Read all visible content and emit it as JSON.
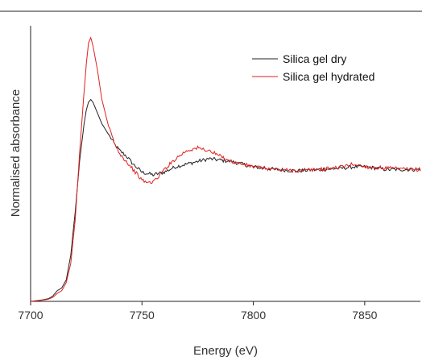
{
  "chart_data": {
    "type": "line",
    "title": "",
    "xlabel": "Energy (eV)",
    "ylabel": "Normalised absorbance",
    "xlim": [
      7700,
      7875
    ],
    "ylim": [
      0,
      1.0
    ],
    "x_ticks": [
      7700,
      7750,
      7800,
      7850
    ],
    "y_ticks_shown": false,
    "grid": false,
    "legend_position": "top-right",
    "series": [
      {
        "name": "Silica gel dry",
        "color": "#222222",
        "points": [
          [
            7700,
            0.0
          ],
          [
            7705,
            0.005
          ],
          [
            7708,
            0.01
          ],
          [
            7710,
            0.02
          ],
          [
            7712,
            0.04
          ],
          [
            7714,
            0.05
          ],
          [
            7716,
            0.08
          ],
          [
            7718,
            0.17
          ],
          [
            7720,
            0.33
          ],
          [
            7722,
            0.52
          ],
          [
            7724,
            0.66
          ],
          [
            7725,
            0.71
          ],
          [
            7726,
            0.74
          ],
          [
            7727,
            0.75
          ],
          [
            7728,
            0.74
          ],
          [
            7730,
            0.7
          ],
          [
            7732,
            0.66
          ],
          [
            7735,
            0.62
          ],
          [
            7738,
            0.58
          ],
          [
            7740,
            0.56
          ],
          [
            7743,
            0.54
          ],
          [
            7746,
            0.51
          ],
          [
            7750,
            0.48
          ],
          [
            7755,
            0.47
          ],
          [
            7760,
            0.48
          ],
          [
            7765,
            0.5
          ],
          [
            7770,
            0.51
          ],
          [
            7775,
            0.52
          ],
          [
            7780,
            0.53
          ],
          [
            7785,
            0.525
          ],
          [
            7790,
            0.52
          ],
          [
            7795,
            0.51
          ],
          [
            7800,
            0.5
          ],
          [
            7810,
            0.49
          ],
          [
            7820,
            0.485
          ],
          [
            7830,
            0.49
          ],
          [
            7840,
            0.495
          ],
          [
            7845,
            0.5
          ],
          [
            7850,
            0.5
          ],
          [
            7860,
            0.49
          ],
          [
            7870,
            0.49
          ],
          [
            7875,
            0.49
          ]
        ]
      },
      {
        "name": "Silica gel hydrated",
        "color": "#e02020",
        "points": [
          [
            7700,
            0.0
          ],
          [
            7705,
            0.004
          ],
          [
            7708,
            0.008
          ],
          [
            7710,
            0.015
          ],
          [
            7712,
            0.03
          ],
          [
            7714,
            0.04
          ],
          [
            7716,
            0.07
          ],
          [
            7718,
            0.14
          ],
          [
            7720,
            0.3
          ],
          [
            7722,
            0.55
          ],
          [
            7724,
            0.78
          ],
          [
            7725,
            0.88
          ],
          [
            7726,
            0.96
          ],
          [
            7727,
            0.98
          ],
          [
            7728,
            0.95
          ],
          [
            7730,
            0.86
          ],
          [
            7732,
            0.75
          ],
          [
            7735,
            0.65
          ],
          [
            7738,
            0.58
          ],
          [
            7740,
            0.55
          ],
          [
            7743,
            0.52
          ],
          [
            7746,
            0.49
          ],
          [
            7750,
            0.45
          ],
          [
            7753,
            0.44
          ],
          [
            7756,
            0.45
          ],
          [
            7760,
            0.49
          ],
          [
            7765,
            0.53
          ],
          [
            7770,
            0.56
          ],
          [
            7775,
            0.57
          ],
          [
            7780,
            0.56
          ],
          [
            7785,
            0.54
          ],
          [
            7790,
            0.52
          ],
          [
            7795,
            0.51
          ],
          [
            7800,
            0.5
          ],
          [
            7810,
            0.49
          ],
          [
            7820,
            0.485
          ],
          [
            7830,
            0.49
          ],
          [
            7840,
            0.5
          ],
          [
            7845,
            0.51
          ],
          [
            7850,
            0.5
          ],
          [
            7860,
            0.495
          ],
          [
            7870,
            0.49
          ],
          [
            7875,
            0.49
          ]
        ]
      }
    ]
  }
}
